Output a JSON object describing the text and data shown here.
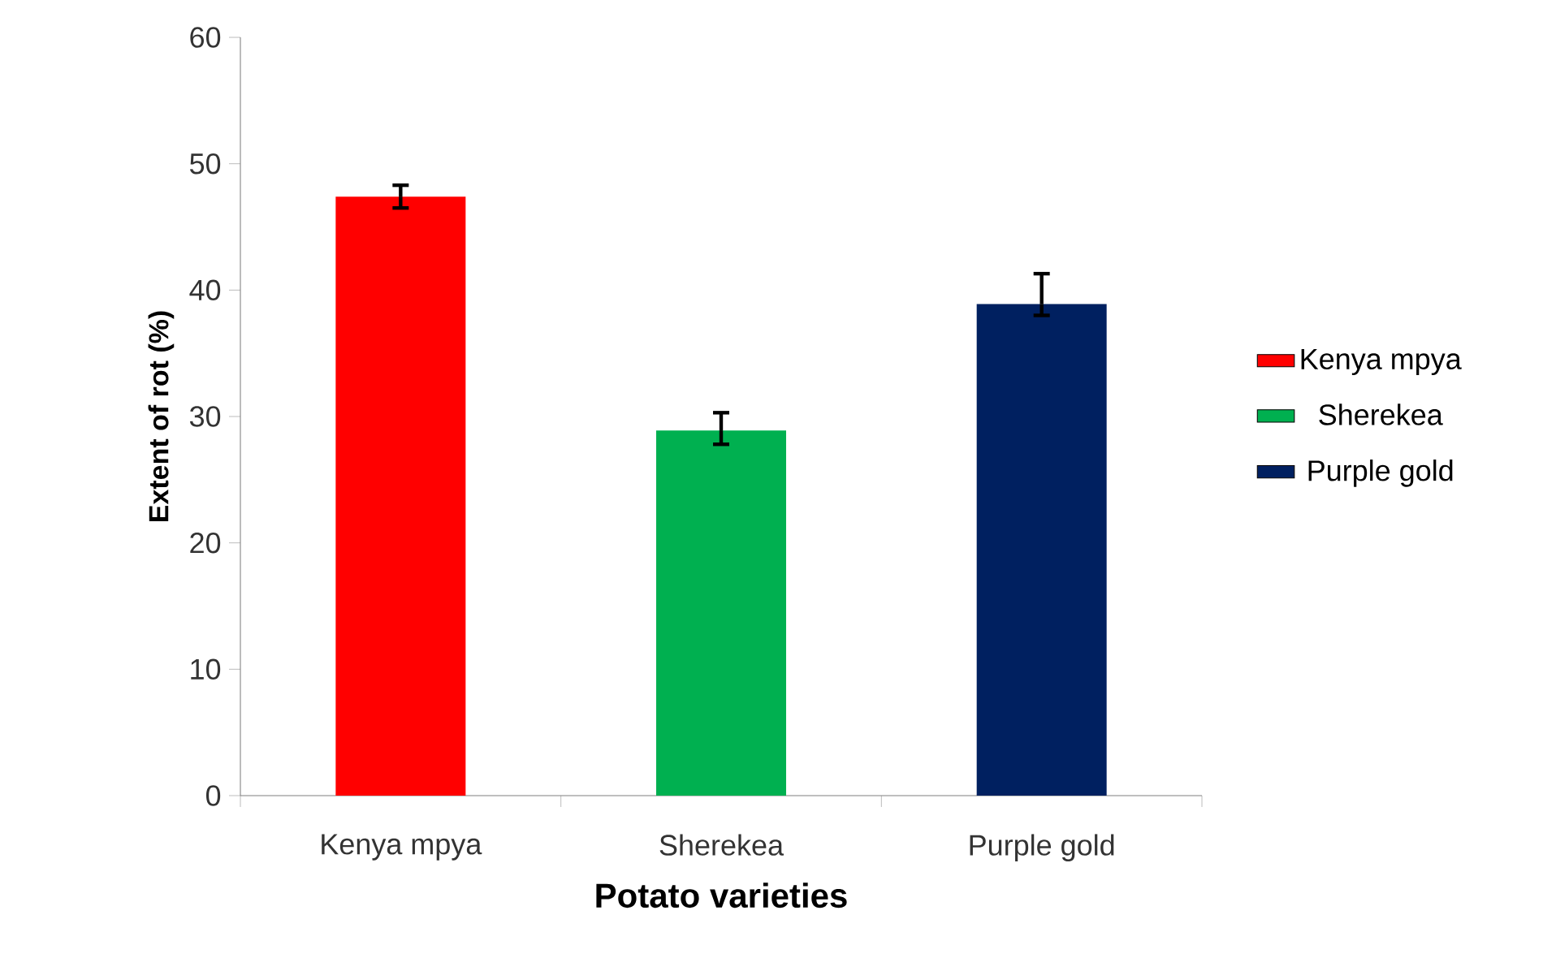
{
  "chart_data": {
    "type": "bar",
    "xlabel": "Potato varieties",
    "ylabel": "Extent of rot (%)",
    "categories": [
      "Kenya mpya",
      "Sherekea",
      "Purple gold"
    ],
    "series": [
      {
        "name": "Kenya mpya",
        "color": "#ff0000",
        "values": [
          47.4,
          null,
          null
        ],
        "errors": [
          [
            46.5,
            48.3
          ],
          null,
          null
        ]
      },
      {
        "name": "Sherekea",
        "color": "#00b050",
        "values": [
          null,
          28.9,
          null
        ],
        "errors": [
          null,
          [
            27.8,
            30.3
          ],
          null
        ]
      },
      {
        "name": "Purple gold",
        "color": "#002060",
        "values": [
          null,
          null,
          38.9
        ],
        "errors": [
          null,
          null,
          [
            38.0,
            41.3
          ]
        ]
      }
    ],
    "ylim": [
      0,
      60
    ],
    "yticks": [
      0,
      10,
      20,
      30,
      40,
      50,
      60
    ],
    "legend": "right",
    "grid": false
  }
}
